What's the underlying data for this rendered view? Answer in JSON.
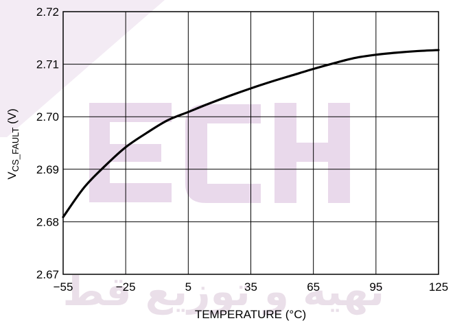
{
  "chart_data": {
    "type": "line",
    "xlabel": "TEMPERATURE (°C)",
    "ylabel_main": "V",
    "ylabel_sub": "CS_FAULT",
    "ylabel_unit": " (V)",
    "xlim": [
      -55,
      125
    ],
    "ylim": [
      2.67,
      2.72
    ],
    "x_ticks": [
      "−55",
      "−25",
      "5",
      "35",
      "65",
      "95",
      "125"
    ],
    "x_tick_values": [
      -55,
      -25,
      5,
      35,
      65,
      95,
      125
    ],
    "y_ticks": [
      "2.67",
      "2.68",
      "2.69",
      "2.70",
      "2.71",
      "2.72"
    ],
    "y_tick_values": [
      2.67,
      2.68,
      2.69,
      2.7,
      2.71,
      2.72
    ],
    "grid": true,
    "series": [
      {
        "x": [
          -55,
          -45,
          -35,
          -25,
          -15,
          -5,
          5,
          15,
          25,
          35,
          45,
          55,
          65,
          75,
          85,
          95,
          105,
          115,
          125
        ],
        "y": [
          2.6809,
          2.6865,
          2.6906,
          2.6942,
          2.6969,
          2.6993,
          2.7009,
          2.7025,
          2.704,
          2.7054,
          2.7067,
          2.7079,
          2.7091,
          2.7102,
          2.7112,
          2.7118,
          2.7122,
          2.7125,
          2.7127
        ]
      }
    ],
    "colors": {
      "line": "#000000",
      "grid": "#000000",
      "watermark": "#e3cfe6"
    },
    "watermark_text": "TECH طهيه و توزيع قطعات"
  }
}
